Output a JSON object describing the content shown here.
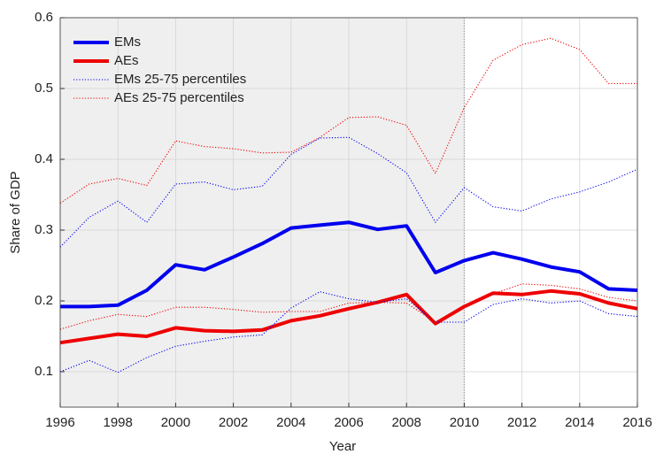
{
  "chart_data": {
    "type": "line",
    "x_label": "Year",
    "y_label": "Share of GDP",
    "x": [
      1996,
      1997,
      1998,
      1999,
      2000,
      2001,
      2002,
      2003,
      2004,
      2005,
      2006,
      2007,
      2008,
      2009,
      2010,
      2011,
      2012,
      2013,
      2014,
      2015,
      2016
    ],
    "series": [
      {
        "name": "EMs",
        "color": "#0000ee",
        "style": "solid",
        "values": [
          0.192,
          0.192,
          0.194,
          0.215,
          0.251,
          0.244,
          0.262,
          0.281,
          0.303,
          0.307,
          0.311,
          0.301,
          0.306,
          0.24,
          0.257,
          0.268,
          0.259,
          0.248,
          0.241,
          0.217,
          0.215
        ]
      },
      {
        "name": "AEs",
        "color": "#ee0000",
        "style": "solid",
        "values": [
          0.141,
          0.147,
          0.153,
          0.15,
          0.162,
          0.158,
          0.157,
          0.159,
          0.172,
          0.179,
          0.189,
          0.198,
          0.209,
          0.168,
          0.192,
          0.211,
          0.209,
          0.214,
          0.21,
          0.197,
          0.189
        ]
      },
      {
        "name": "EMs 25-75 percentiles",
        "color": "#0000ee",
        "style": "dotted",
        "lower": [
          0.1,
          0.116,
          0.099,
          0.12,
          0.136,
          0.143,
          0.149,
          0.152,
          0.19,
          0.213,
          0.203,
          0.198,
          0.203,
          0.17,
          0.17,
          0.195,
          0.203,
          0.197,
          0.2,
          0.182,
          0.178
        ],
        "upper": [
          0.276,
          0.318,
          0.341,
          0.311,
          0.365,
          0.368,
          0.357,
          0.362,
          0.407,
          0.43,
          0.431,
          0.408,
          0.381,
          0.311,
          0.36,
          0.333,
          0.327,
          0.344,
          0.354,
          0.368,
          0.386
        ]
      },
      {
        "name": "AEs 25-75 percentiles",
        "color": "#ee0000",
        "style": "dotted",
        "lower": [
          0.16,
          0.172,
          0.181,
          0.178,
          0.191,
          0.191,
          0.188,
          0.184,
          0.185,
          0.185,
          0.197,
          0.198,
          0.197,
          0.17,
          0.193,
          0.21,
          0.224,
          0.222,
          0.217,
          0.205,
          0.2
        ],
        "upper": [
          0.338,
          0.365,
          0.373,
          0.363,
          0.426,
          0.418,
          0.415,
          0.409,
          0.41,
          0.431,
          0.459,
          0.46,
          0.448,
          0.38,
          0.473,
          0.54,
          0.562,
          0.571,
          0.555,
          0.507,
          0.507
        ]
      }
    ],
    "shaded_x": [
      1996,
      2010
    ],
    "shade_color": "#efefef",
    "xlim": [
      1996,
      2016
    ],
    "xticks": [
      1996,
      1998,
      2000,
      2002,
      2004,
      2006,
      2008,
      2010,
      2012,
      2014,
      2016
    ],
    "ylim": [
      0.05,
      0.6
    ],
    "yticks": [
      0.1,
      0.2,
      0.3,
      0.4,
      0.5,
      0.6
    ],
    "grid": true,
    "legend": "upper-left"
  }
}
